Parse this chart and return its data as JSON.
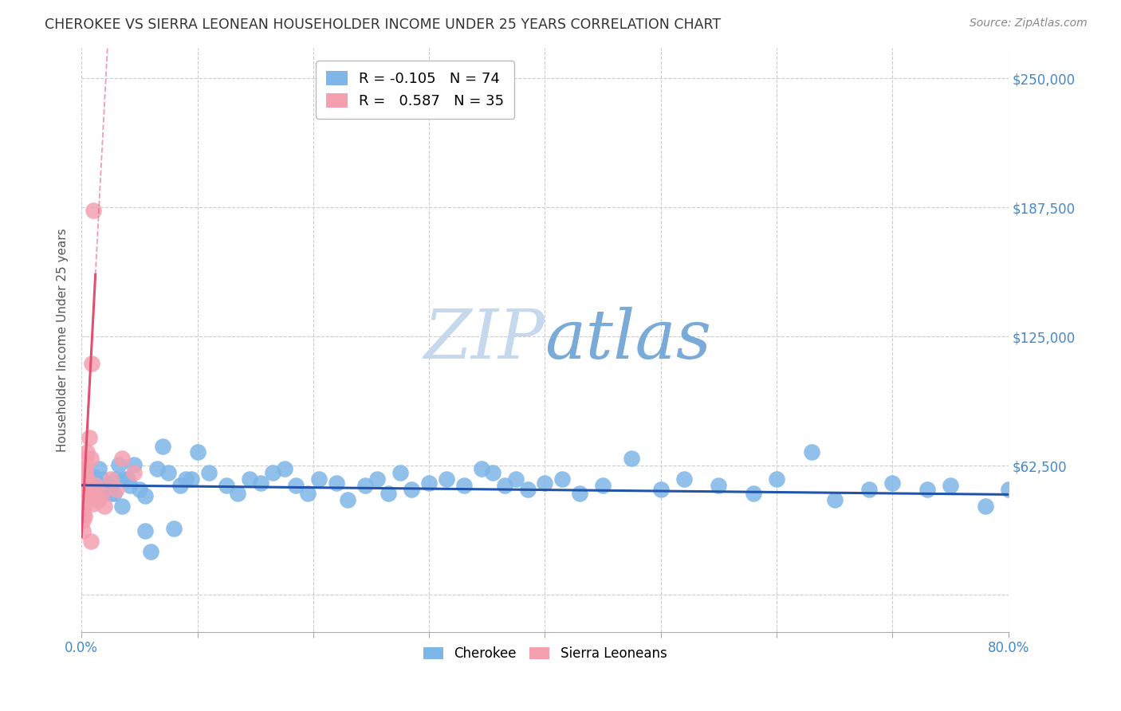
{
  "title": "CHEROKEE VS SIERRA LEONEAN HOUSEHOLDER INCOME UNDER 25 YEARS CORRELATION CHART",
  "source": "Source: ZipAtlas.com",
  "ylabel": "Householder Income Under 25 years",
  "xlim": [
    0,
    80
  ],
  "ylim": [
    -18000,
    265000
  ],
  "cherokee_R": -0.105,
  "cherokee_N": 74,
  "sierra_R": 0.587,
  "sierra_N": 35,
  "cherokee_color": "#7EB6E8",
  "sierra_color": "#F4A0B0",
  "cherokee_line_color": "#2255AA",
  "sierra_line_color": "#E05070",
  "watermark_zip_color": "#C5D8EE",
  "watermark_atlas_color": "#7AAAD8",
  "background_color": "#FFFFFF",
  "grid_color": "#CCCCCC",
  "title_color": "#333333",
  "axis_label_color": "#4488CC",
  "ylabel_ticks": [
    0,
    62500,
    125000,
    187500,
    250000
  ],
  "xlabel_ticks": [
    0,
    10,
    20,
    30,
    40,
    50,
    60,
    70,
    80
  ],
  "cherokee_x": [
    0.3,
    0.5,
    0.7,
    0.9,
    1.1,
    1.3,
    1.5,
    1.8,
    2.0,
    2.3,
    2.8,
    3.2,
    3.7,
    4.2,
    5.0,
    5.5,
    6.5,
    7.5,
    8.5,
    9.5,
    11.0,
    12.5,
    13.5,
    14.5,
    15.5,
    16.5,
    17.5,
    18.5,
    19.5,
    20.5,
    22.0,
    23.0,
    24.5,
    25.5,
    26.5,
    27.5,
    28.5,
    30.0,
    31.5,
    33.0,
    34.5,
    35.5,
    36.5,
    37.5,
    38.5,
    40.0,
    41.5,
    43.0,
    45.0,
    47.5,
    50.0,
    52.0,
    55.0,
    58.0,
    60.0,
    63.0,
    65.0,
    68.0,
    70.0,
    73.0,
    75.0,
    78.0,
    80.0,
    4.0,
    4.5,
    5.5,
    6.0,
    7.0,
    8.0,
    9.0,
    10.0,
    3.5,
    3.0,
    2.5
  ],
  "cherokee_y": [
    53000,
    56000,
    49000,
    52000,
    57000,
    46000,
    61000,
    56000,
    51000,
    53000,
    49000,
    63000,
    56000,
    53000,
    51000,
    48000,
    61000,
    59000,
    53000,
    56000,
    59000,
    53000,
    49000,
    56000,
    54000,
    59000,
    61000,
    53000,
    49000,
    56000,
    54000,
    46000,
    53000,
    56000,
    49000,
    59000,
    51000,
    54000,
    56000,
    53000,
    61000,
    59000,
    53000,
    56000,
    51000,
    54000,
    56000,
    49000,
    53000,
    66000,
    51000,
    56000,
    53000,
    49000,
    56000,
    69000,
    46000,
    51000,
    54000,
    51000,
    53000,
    43000,
    51000,
    56000,
    63000,
    31000,
    21000,
    72000,
    32000,
    56000,
    69000,
    43000,
    56000,
    49000
  ],
  "sierra_x": [
    0.1,
    0.15,
    0.2,
    0.25,
    0.3,
    0.35,
    0.4,
    0.45,
    0.5,
    0.6,
    0.7,
    0.8,
    0.9,
    1.0,
    1.2,
    1.5,
    1.8,
    2.0,
    2.5,
    3.0,
    3.5,
    4.5,
    0.1,
    0.12,
    0.15,
    0.18,
    0.2,
    0.22,
    0.25,
    0.3,
    0.4,
    0.5,
    0.6,
    0.8,
    1.0
  ],
  "sierra_y": [
    51000,
    49000,
    56000,
    53000,
    61000,
    59000,
    66000,
    56000,
    69000,
    53000,
    76000,
    66000,
    112000,
    186000,
    53000,
    46000,
    49000,
    43000,
    56000,
    51000,
    66000,
    59000,
    31000,
    36000,
    41000,
    39000,
    43000,
    46000,
    38000,
    53000,
    56000,
    46000,
    51000,
    26000,
    44000
  ],
  "sierra_line_x_start": 0.0,
  "sierra_line_x_solid_end": 1.2,
  "sierra_line_x_dash_end": 5.0,
  "cherokee_line_x_start": 0.0,
  "cherokee_line_x_end": 80.0
}
